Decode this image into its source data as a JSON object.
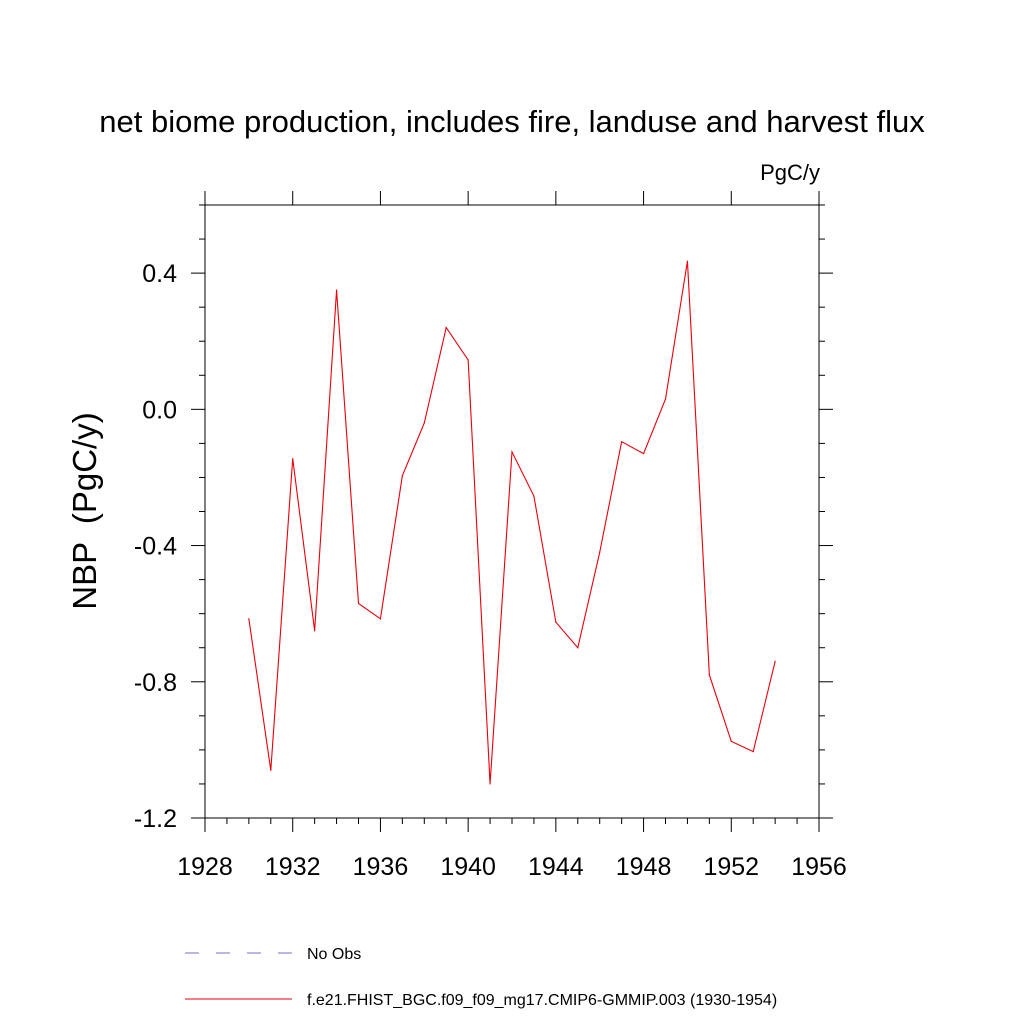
{
  "chart_data": {
    "type": "line",
    "title": "net biome production, includes fire, landuse and harvest flux",
    "units_label": "PgC/y",
    "xlabel": "",
    "ylabel": "NBP  (PgC/y)",
    "xlim": [
      1928,
      1956
    ],
    "ylim": [
      -1.2,
      0.6
    ],
    "x_ticks": [
      1928,
      1932,
      1936,
      1940,
      1944,
      1948,
      1952,
      1956
    ],
    "x_tick_labels": [
      "1928",
      "1932",
      "1936",
      "1940",
      "1944",
      "1948",
      "1952",
      "1956"
    ],
    "y_ticks": [
      -1.2,
      -0.8,
      -0.4,
      0.0,
      0.4
    ],
    "y_tick_labels": [
      "-1.2",
      "-0.8",
      "-0.4",
      "0.0",
      "0.4"
    ],
    "grid": false,
    "legend_position": "bottom-left",
    "series": [
      {
        "name": "f.e21.FHIST_BGC.f09_f09_mg17.CMIP6-GMMIP.003 (1930-1954)",
        "color": "#e8000b",
        "style": "solid",
        "x": [
          1930,
          1931,
          1932,
          1933,
          1934,
          1935,
          1936,
          1937,
          1938,
          1939,
          1940,
          1941,
          1942,
          1943,
          1944,
          1945,
          1946,
          1947,
          1948,
          1949,
          1950,
          1951,
          1952,
          1953,
          1954
        ],
        "values": [
          -0.615,
          -1.06,
          -0.145,
          -0.65,
          0.35,
          -0.57,
          -0.615,
          -0.195,
          -0.04,
          0.24,
          0.145,
          -1.1,
          -0.125,
          -0.255,
          -0.625,
          -0.7,
          -0.42,
          -0.095,
          -0.13,
          0.03,
          0.435,
          -0.78,
          -0.975,
          -1.005,
          -0.74
        ]
      }
    ],
    "legend": [
      {
        "label": "No Obs",
        "color": "#7a6fc0",
        "style": "dashed"
      },
      {
        "label": "f.e21.FHIST_BGC.f09_f09_mg17.CMIP6-GMMIP.003 (1930-1954)",
        "color": "#e8000b",
        "style": "solid"
      }
    ]
  }
}
